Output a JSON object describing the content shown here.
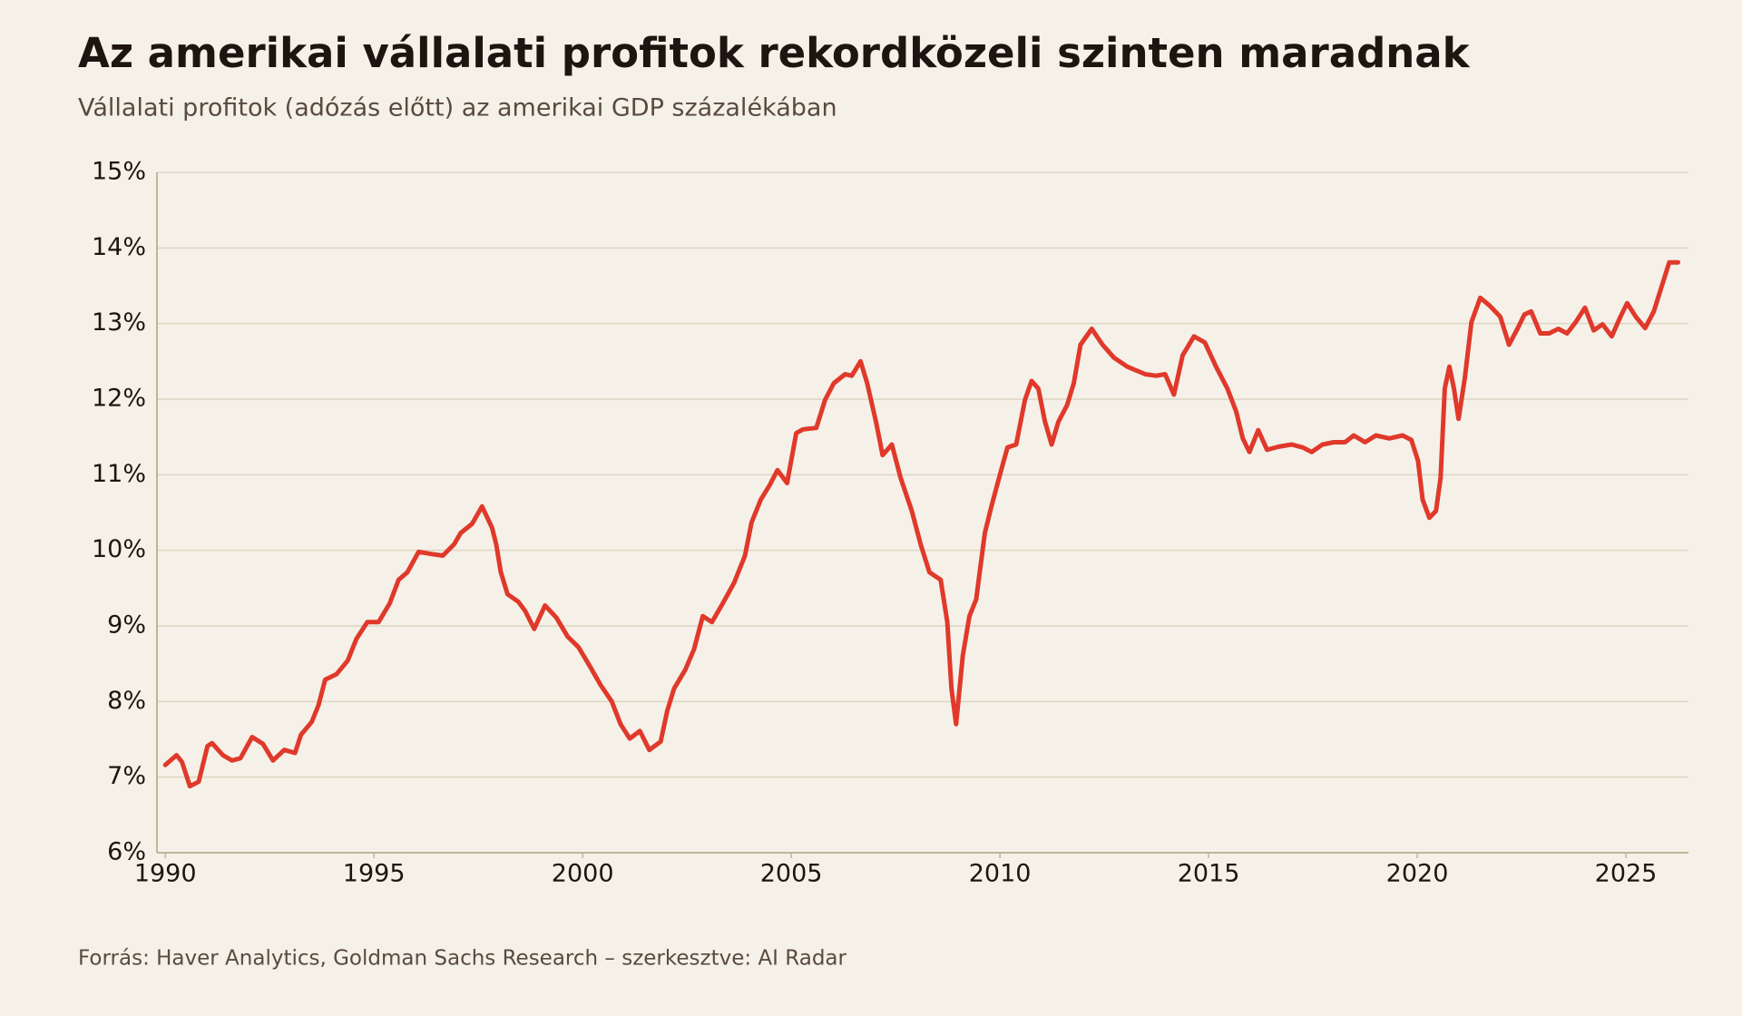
{
  "chart_data": {
    "type": "line",
    "title": "Az amerikai vállalati profitok rekordközeli szinten maradnak",
    "subtitle": "Vállalati profitok (adózás előtt) az amerikai GDP százalékában",
    "source": "Forrás: Haver Analytics, Goldman Sachs Research – szerkesztve: AI Radar",
    "color": "#e0392b",
    "grid": true,
    "xlim": [
      1989.8,
      2026.5
    ],
    "ylim": [
      6,
      15
    ],
    "xticks": [
      1990,
      1995,
      2000,
      2005,
      2010,
      2015,
      2020,
      2025
    ],
    "yticks": [
      {
        "value": 6,
        "label": "6%"
      },
      {
        "value": 7,
        "label": "7%"
      },
      {
        "value": 8,
        "label": "8%"
      },
      {
        "value": 9,
        "label": "9%"
      },
      {
        "value": 10,
        "label": "10%"
      },
      {
        "value": 11,
        "label": "11%"
      },
      {
        "value": 12,
        "label": "12%"
      },
      {
        "value": 13,
        "label": "13%"
      },
      {
        "value": 14,
        "label": "14%"
      },
      {
        "value": 15,
        "label": "15%"
      }
    ],
    "x": [
      1990.0,
      1990.27,
      1990.4,
      1990.59,
      1990.8,
      1991.01,
      1991.12,
      1991.38,
      1991.6,
      1991.8,
      1992.08,
      1992.34,
      1992.58,
      1992.85,
      1993.11,
      1993.25,
      1993.51,
      1993.67,
      1993.83,
      1994.1,
      1994.37,
      1994.58,
      1994.84,
      1995.11,
      1995.38,
      1995.59,
      1995.8,
      1996.07,
      1996.39,
      1996.65,
      1996.92,
      1997.08,
      1997.35,
      1997.59,
      1997.83,
      1997.93,
      1998.04,
      1998.2,
      1998.46,
      1998.62,
      1998.84,
      1999.1,
      1999.37,
      1999.64,
      1999.9,
      2000.17,
      2000.43,
      2000.7,
      2000.91,
      2001.13,
      2001.37,
      2001.6,
      2001.87,
      2002.03,
      2002.19,
      2002.46,
      2002.67,
      2002.88,
      2003.1,
      2003.36,
      2003.63,
      2003.89,
      2004.05,
      2004.27,
      2004.48,
      2004.67,
      2004.9,
      2005.12,
      2005.28,
      2005.6,
      2005.81,
      2006.02,
      2006.29,
      2006.45,
      2006.66,
      2006.82,
      2007.03,
      2007.19,
      2007.41,
      2007.62,
      2007.89,
      2008.1,
      2008.31,
      2008.58,
      2008.74,
      2008.84,
      2008.95,
      2009.11,
      2009.27,
      2009.43,
      2009.64,
      2009.8,
      2010.02,
      2010.18,
      2010.39,
      2010.6,
      2010.76,
      2010.92,
      2011.08,
      2011.24,
      2011.4,
      2011.61,
      2011.77,
      2011.93,
      2012.2,
      2012.46,
      2012.73,
      2013.05,
      2013.48,
      2013.74,
      2013.96,
      2014.17,
      2014.38,
      2014.65,
      2014.91,
      2015.18,
      2015.45,
      2015.66,
      2015.82,
      2015.98,
      2016.19,
      2016.4,
      2016.67,
      2016.99,
      2017.26,
      2017.47,
      2017.73,
      2018.0,
      2018.27,
      2018.48,
      2018.75,
      2019.01,
      2019.33,
      2019.65,
      2019.86,
      2020.02,
      2020.13,
      2020.29,
      2020.45,
      2020.56,
      2020.66,
      2020.77,
      2020.88,
      2020.99,
      2021.14,
      2021.3,
      2021.51,
      2021.73,
      2021.99,
      2022.2,
      2022.41,
      2022.57,
      2022.73,
      2022.95,
      2023.16,
      2023.38,
      2023.59,
      2023.8,
      2024.02,
      2024.23,
      2024.44,
      2024.66,
      2024.87,
      2025.03,
      2025.24,
      2025.46,
      2025.67,
      2025.88,
      2026.04,
      2026.25
    ],
    "values": [
      7.16,
      7.29,
      7.2,
      6.88,
      6.94,
      7.41,
      7.45,
      7.29,
      7.22,
      7.25,
      7.53,
      7.44,
      7.22,
      7.36,
      7.32,
      7.56,
      7.73,
      7.95,
      8.29,
      8.36,
      8.54,
      8.83,
      9.05,
      9.05,
      9.3,
      9.61,
      9.71,
      9.98,
      9.95,
      9.93,
      10.08,
      10.23,
      10.35,
      10.58,
      10.3,
      10.08,
      9.71,
      9.42,
      9.32,
      9.2,
      8.96,
      9.27,
      9.11,
      8.86,
      8.72,
      8.47,
      8.22,
      8.0,
      7.7,
      7.51,
      7.61,
      7.36,
      7.47,
      7.88,
      8.17,
      8.42,
      8.69,
      9.13,
      9.05,
      9.3,
      9.57,
      9.93,
      10.37,
      10.67,
      10.86,
      11.06,
      10.89,
      11.55,
      11.6,
      11.62,
      11.99,
      12.21,
      12.33,
      12.31,
      12.5,
      12.21,
      11.7,
      11.26,
      11.4,
      10.96,
      10.52,
      10.08,
      9.71,
      9.61,
      9.05,
      8.17,
      7.7,
      8.61,
      9.13,
      9.35,
      10.23,
      10.59,
      11.04,
      11.36,
      11.4,
      11.99,
      12.24,
      12.14,
      11.7,
      11.4,
      11.7,
      11.92,
      12.21,
      12.72,
      12.93,
      12.72,
      12.55,
      12.43,
      12.33,
      12.31,
      12.33,
      12.06,
      12.58,
      12.83,
      12.75,
      12.43,
      12.14,
      11.84,
      11.48,
      11.3,
      11.59,
      11.33,
      11.37,
      11.4,
      11.36,
      11.3,
      11.4,
      11.43,
      11.43,
      11.52,
      11.43,
      11.52,
      11.48,
      11.52,
      11.46,
      11.18,
      10.67,
      10.43,
      10.52,
      10.96,
      12.14,
      12.43,
      12.14,
      11.74,
      12.28,
      13.02,
      13.34,
      13.24,
      13.09,
      12.72,
      12.94,
      13.12,
      13.16,
      12.87,
      12.87,
      12.93,
      12.87,
      13.02,
      13.21,
      12.91,
      12.99,
      12.83,
      13.09,
      13.27,
      13.09,
      12.94,
      13.16,
      13.53,
      13.81,
      13.81
    ]
  }
}
